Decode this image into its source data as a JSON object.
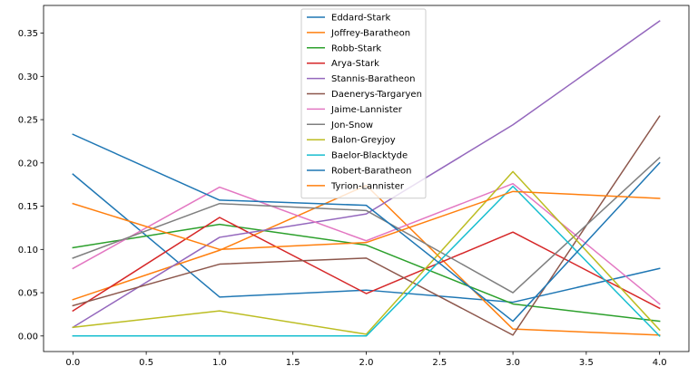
{
  "chart_data": {
    "type": "line",
    "title": "",
    "xlabel": "",
    "ylabel": "",
    "xlim": [
      -0.2,
      4.2
    ],
    "ylim": [
      -0.018,
      0.382
    ],
    "grid": false,
    "legend_position": "top-center",
    "x": [
      0,
      1,
      2,
      3,
      4
    ],
    "x_ticks": [
      0.0,
      0.5,
      1.0,
      1.5,
      2.0,
      2.5,
      3.0,
      3.5,
      4.0
    ],
    "x_tick_labels": [
      "0.0",
      "0.5",
      "1.0",
      "1.5",
      "2.0",
      "2.5",
      "3.0",
      "3.5",
      "4.0"
    ],
    "y_ticks": [
      0.0,
      0.05,
      0.1,
      0.15,
      0.2,
      0.25,
      0.3,
      0.35
    ],
    "y_tick_labels": [
      "0.00",
      "0.05",
      "0.10",
      "0.15",
      "0.20",
      "0.25",
      "0.30",
      "0.35"
    ],
    "series": [
      {
        "name": "Eddard-Stark",
        "color": "#1f77b4",
        "values": [
          0.187,
          0.045,
          0.053,
          0.039,
          0.078
        ]
      },
      {
        "name": "Joffrey-Baratheon",
        "color": "#ff7f0e",
        "values": [
          0.042,
          0.099,
          0.174,
          0.008,
          0.001
        ]
      },
      {
        "name": "Robb-Stark",
        "color": "#2ca02c",
        "values": [
          0.102,
          0.129,
          0.105,
          0.037,
          0.017
        ]
      },
      {
        "name": "Arya-Stark",
        "color": "#d62728",
        "values": [
          0.029,
          0.137,
          0.049,
          0.12,
          0.032
        ]
      },
      {
        "name": "Stannis-Baratheon",
        "color": "#9467bd",
        "values": [
          0.01,
          0.114,
          0.141,
          0.244,
          0.364
        ]
      },
      {
        "name": "Daenerys-Targaryen",
        "color": "#8c564b",
        "values": [
          0.035,
          0.083,
          0.09,
          0.001,
          0.254
        ]
      },
      {
        "name": "Jaime-Lannister",
        "color": "#e377c2",
        "values": [
          0.078,
          0.172,
          0.11,
          0.176,
          0.037
        ]
      },
      {
        "name": "Jon-Snow",
        "color": "#7f7f7f",
        "values": [
          0.09,
          0.153,
          0.145,
          0.05,
          0.206
        ]
      },
      {
        "name": "Balon-Greyjoy",
        "color": "#bcbd22",
        "values": [
          0.01,
          0.029,
          0.002,
          0.19,
          0.007
        ]
      },
      {
        "name": "Baelor-Blacktyde",
        "color": "#17becf",
        "values": [
          0.0,
          0.0,
          0.0,
          0.173,
          0.0
        ]
      },
      {
        "name": "Robert-Baratheon",
        "color": "#1f77b4",
        "values": [
          0.233,
          0.157,
          0.151,
          0.017,
          0.2
        ]
      },
      {
        "name": "Tyrion-Lannister",
        "color": "#ff7f0e",
        "values": [
          0.153,
          0.1,
          0.108,
          0.167,
          0.159
        ]
      }
    ]
  }
}
